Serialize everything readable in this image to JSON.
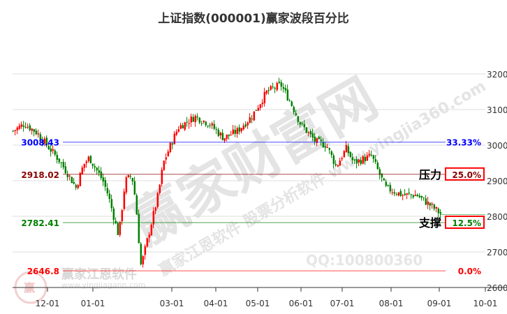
{
  "chart_data": {
    "type": "candlestick",
    "title": "上证指数(000001)赢家波段百分比",
    "ylim": [
      2600,
      3250
    ],
    "y_ticks": [
      "3200",
      "3100",
      "3000",
      "2900",
      "2800",
      "2700",
      "2600"
    ],
    "x_ticks": [
      "12-01",
      "01-01",
      "03-01",
      "04-01",
      "05-01",
      "06-01",
      "07-01",
      "08-01",
      "09-01",
      "10-01"
    ],
    "grid": true,
    "price_path": [
      [
        "11-03",
        3040
      ],
      [
        "11-12",
        3060
      ],
      [
        "11-22",
        3035
      ],
      [
        "12-01",
        2995
      ],
      [
        "12-08",
        2960
      ],
      [
        "12-15",
        2915
      ],
      [
        "12-20",
        2880
      ],
      [
        "12-25",
        2945
      ],
      [
        "12-29",
        2965
      ],
      [
        "01-08",
        2900
      ],
      [
        "01-12",
        2860
      ],
      [
        "01-20",
        2745
      ],
      [
        "01-25",
        2900
      ],
      [
        "01-30",
        2915
      ],
      [
        "02-02",
        2840
      ],
      [
        "02-05",
        2700
      ],
      [
        "02-06",
        2660
      ],
      [
        "02-19",
        2860
      ],
      [
        "02-23",
        2950
      ],
      [
        "02-29",
        3005
      ],
      [
        "03-05",
        3050
      ],
      [
        "03-17",
        3080
      ],
      [
        "03-27",
        3060
      ],
      [
        "04-06",
        3020
      ],
      [
        "04-16",
        3040
      ],
      [
        "04-26",
        3080
      ],
      [
        "05-07",
        3150
      ],
      [
        "05-17",
        3170
      ],
      [
        "05-24",
        3120
      ],
      [
        "05-31",
        3060
      ],
      [
        "06-11",
        3010
      ],
      [
        "06-19",
        3000
      ],
      [
        "06-26",
        2940
      ],
      [
        "07-03",
        2990
      ],
      [
        "07-08",
        2950
      ],
      [
        "07-19",
        2970
      ],
      [
        "07-28",
        2880
      ],
      [
        "08-08",
        2860
      ],
      [
        "08-17",
        2860
      ],
      [
        "08-26",
        2830
      ],
      [
        "09-02",
        2805
      ]
    ],
    "levels": [
      {
        "value": "3008.43",
        "percent": "33.33%",
        "color": "#0000ff"
      },
      {
        "value": "2918.02",
        "percent": "25.0%",
        "color": "#8b0000",
        "tag": "压力",
        "boxed": true
      },
      {
        "value": "2782.41",
        "percent": "12.5%",
        "color": "#008000",
        "tag": "支撑",
        "boxed": true
      },
      {
        "value": "2646.8",
        "percent": "0.0%",
        "color": "#ff0000"
      }
    ],
    "last_close": 2805,
    "up_color": "#ff0000",
    "down_color": "#008000"
  },
  "watermark": {
    "main": "赢家财富网",
    "line1": "赢家江恩软件 股票分析软件 www.yingjia360.com",
    "qq": "QQ:100800360",
    "logo_text": "赢家江恩软件",
    "logo_url": "www.yingjiagann.com"
  }
}
